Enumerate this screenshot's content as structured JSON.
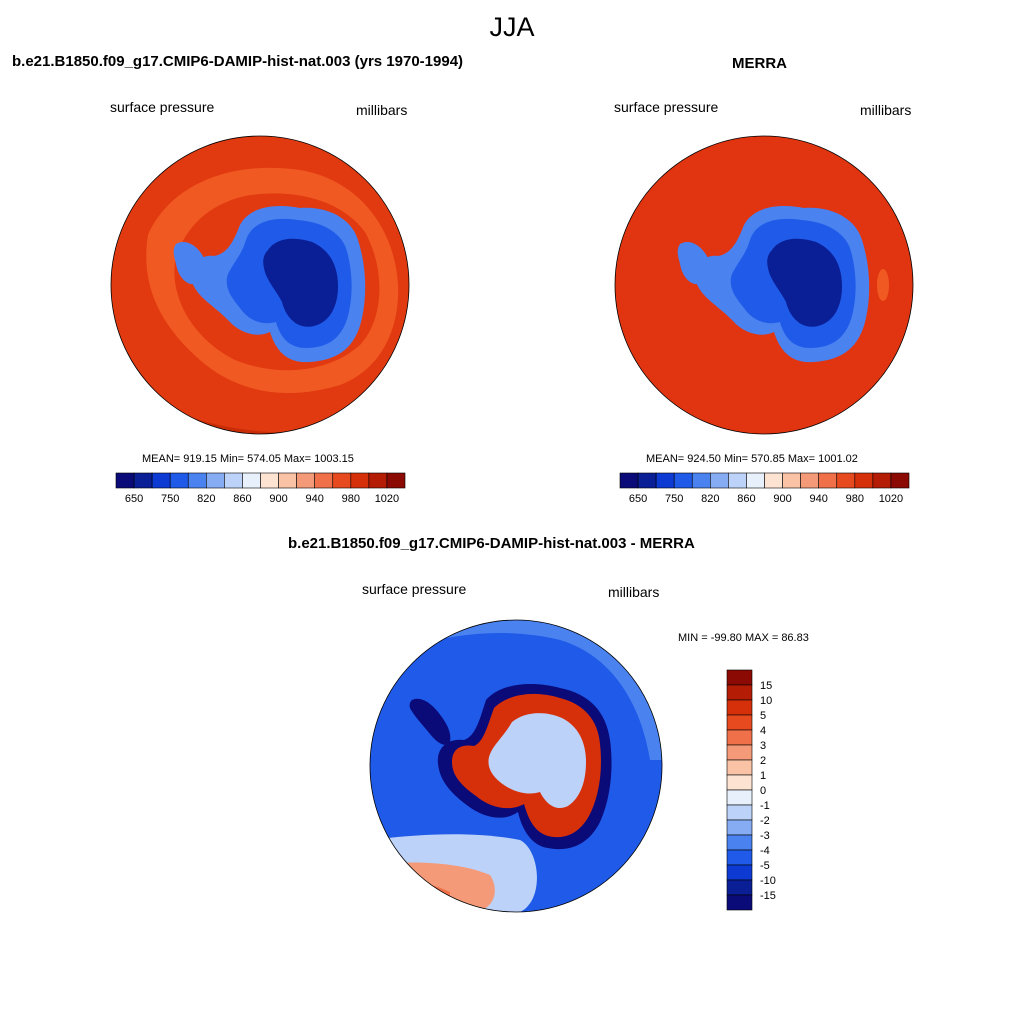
{
  "figure": {
    "title": "JJA"
  },
  "panels": {
    "model": {
      "title": "b.e21.B1850.f09_g17.CMIP6-DAMIP-hist-nat.003 (yrs 1970-1994)",
      "variable": "surface pressure",
      "units": "millibars",
      "stats": "MEAN= 919.15  Min= 574.05  Max= 1003.15"
    },
    "obs": {
      "title": "MERRA",
      "variable": "surface pressure",
      "units": "millibars",
      "stats": "MEAN= 924.50  Min= 570.85  Max= 1001.02"
    },
    "diff": {
      "title": "b.e21.B1850.f09_g17.CMIP6-DAMIP-hist-nat.003 - MERRA",
      "variable": "surface pressure",
      "units": "millibars",
      "stats": "MIN = -99.80 MAX =  86.83"
    }
  },
  "colorbars": {
    "absolute": {
      "colors": [
        "#0a0a78",
        "#0a1e96",
        "#0c3ad2",
        "#1f5ae8",
        "#4a82f0",
        "#86acf4",
        "#bcd2f8",
        "#e8f0fc",
        "#fde4d2",
        "#fac3a6",
        "#f59a78",
        "#f0704a",
        "#e84a20",
        "#d6300a",
        "#b41c06",
        "#8c0a04"
      ],
      "labels": [
        "650",
        "750",
        "820",
        "860",
        "900",
        "940",
        "980",
        "1020"
      ]
    },
    "difference": {
      "colors": [
        "#8c0a04",
        "#b41c06",
        "#d6300a",
        "#e84a20",
        "#f0704a",
        "#f59a78",
        "#fac3a6",
        "#fde4d2",
        "#e8f0fc",
        "#bcd2f8",
        "#86acf4",
        "#4a82f0",
        "#1f5ae8",
        "#0c3ad2",
        "#0a1e96",
        "#0a0a78"
      ],
      "labels": [
        "15",
        "10",
        "5",
        "4",
        "3",
        "2",
        "1",
        "0",
        "-1",
        "-2",
        "-3",
        "-4",
        "-5",
        "-10",
        "-15"
      ]
    }
  },
  "palette": {
    "ocean_model": "#e23a10",
    "ocean_obs": "#e03510",
    "ocean_band": "#f05a22",
    "ocean_dark": "#c92d08",
    "ice_light": "#4a82f0",
    "ice_mid": "#1f5ae8",
    "ice_dark": "#0c3ad2",
    "ice_core": "#0a1e96",
    "diff_ocean": "#1f5ae8",
    "diff_ocean_light": "#4a82f0",
    "diff_pale": "#bcd2f8",
    "diff_warm": "#f59a78",
    "diff_warm2": "#f0704a",
    "diff_red": "#d6300a",
    "diff_dark": "#0a0a78"
  }
}
